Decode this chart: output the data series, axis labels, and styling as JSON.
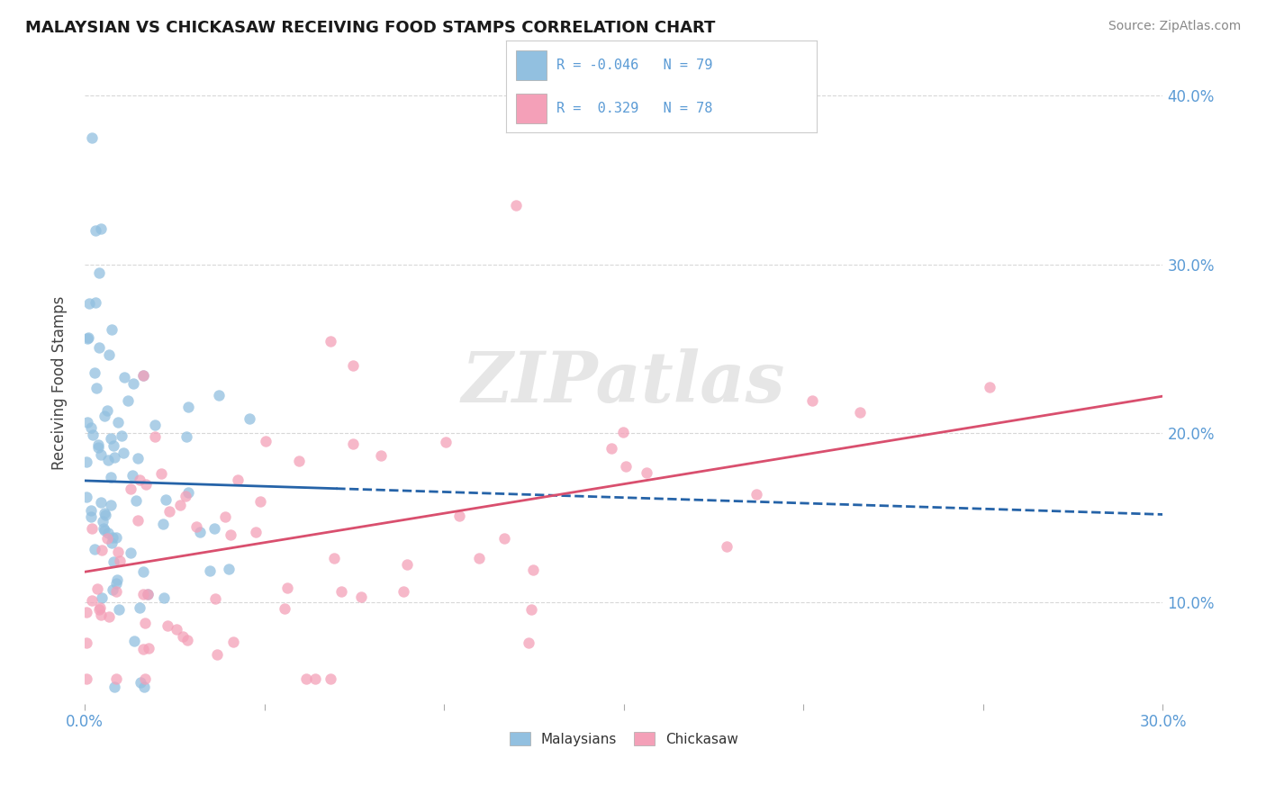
{
  "title": "MALAYSIAN VS CHICKASAW RECEIVING FOOD STAMPS CORRELATION CHART",
  "source": "Source: ZipAtlas.com",
  "ylabel": "Receiving Food Stamps",
  "legend_r1": "R = -0.046",
  "legend_n1": "N = 79",
  "legend_r2": "R =  0.329",
  "legend_n2": "N = 78",
  "xlim": [
    0.0,
    0.3
  ],
  "ylim": [
    0.04,
    0.42
  ],
  "x_ticks": [
    0.0,
    0.05,
    0.1,
    0.15,
    0.2,
    0.25,
    0.3
  ],
  "y_ticks": [
    0.1,
    0.2,
    0.3,
    0.4
  ],
  "blue_color": "#92c0e0",
  "pink_color": "#f4a0b8",
  "blue_line_color": "#2563a8",
  "pink_line_color": "#d94f6e",
  "tick_color": "#5b9bd5",
  "watermark": "ZIPatlas",
  "grid_color": "#d8d8d8",
  "mal_line_y0": 0.172,
  "mal_line_y1": 0.152,
  "chick_line_y0": 0.118,
  "chick_line_y1": 0.222
}
